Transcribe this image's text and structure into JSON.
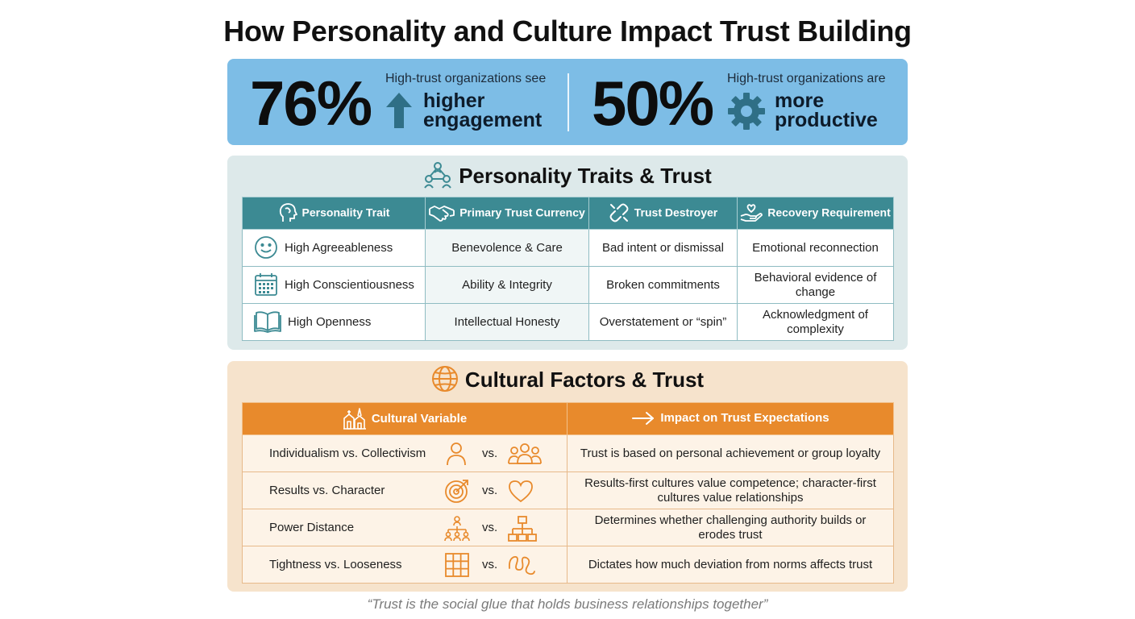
{
  "title": "How Personality and Culture Impact Trust Building",
  "stats": [
    {
      "value": "76%",
      "caption": "High-trust organizations see",
      "highlight_line1": "higher",
      "highlight_line2": "engagement",
      "icon": "arrow-up-icon"
    },
    {
      "value": "50%",
      "caption": "High-trust organizations are",
      "highlight_line1": "more",
      "highlight_line2": "productive",
      "icon": "gear-icon"
    }
  ],
  "personality": {
    "heading": "Personality Traits & Trust",
    "headers": [
      "Personality Trait",
      "Primary Trust Currency",
      "Trust Destroyer",
      "Recovery Requirement"
    ],
    "rows": [
      {
        "trait": "High Agreeableness",
        "currency": "Benevolence & Care",
        "destroyer": "Bad intent or dismissal",
        "recovery": "Emotional reconnection",
        "icon": "smiley-icon"
      },
      {
        "trait": "High Conscientiousness",
        "currency": "Ability & Integrity",
        "destroyer": "Broken commitments",
        "recovery": "Behavioral evidence of change",
        "icon": "calendar-icon"
      },
      {
        "trait": "High Openness",
        "currency": "Intellectual Honesty",
        "destroyer": "Overstatement or “spin”",
        "recovery": "Acknowledgment of complexity",
        "icon": "book-icon"
      }
    ]
  },
  "culture": {
    "heading": "Cultural Factors & Trust",
    "headers": [
      "Cultural Variable",
      "Impact on Trust Expectations"
    ],
    "vs_label": "vs.",
    "rows": [
      {
        "variable": "Individualism vs. Collectivism",
        "impact": "Trust is based on personal achievement or group loyalty",
        "icons": [
          "person-icon",
          "group-icon"
        ]
      },
      {
        "variable": "Results vs. Character",
        "impact": "Results-first cultures value competence; character-first cultures value relationships",
        "icons": [
          "target-icon",
          "heart-icon"
        ]
      },
      {
        "variable": "Power Distance",
        "impact": "Determines whether challenging authority builds or erodes trust",
        "icons": [
          "hierarchy-icon",
          "org-chart-icon"
        ]
      },
      {
        "variable": "Tightness vs. Looseness",
        "impact": "Dictates how much deviation from norms affects trust",
        "icons": [
          "grid-icon",
          "squiggle-icon"
        ]
      }
    ]
  },
  "quote": "“Trust is the social glue that holds business relationships together”",
  "colors": {
    "stats_bg": "#7dbde6",
    "teal": "#3c8a93",
    "personality_bg": "#dde9ea",
    "orange": "#e88a2c",
    "culture_bg": "#f6e3cc",
    "stat_icon": "#2f6f86"
  }
}
